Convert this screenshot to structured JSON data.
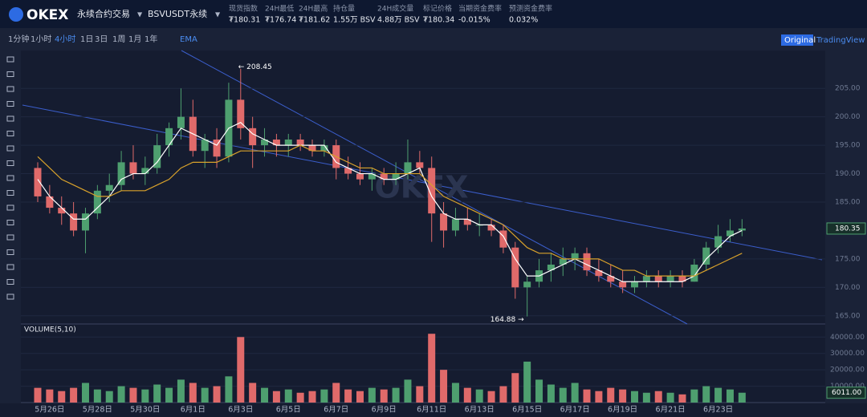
{
  "header": {
    "logo": "OKEX",
    "market": "永续合约交易",
    "contract": "BSVUSDT永续",
    "stats": [
      {
        "label": "现货指数",
        "value": "₮180.31"
      },
      {
        "label": "24H最低",
        "value": "₮176.74"
      },
      {
        "label": "24H最高",
        "value": "₮181.62"
      },
      {
        "label": "持仓量",
        "value": "1.55万 BSV"
      },
      {
        "label": "24H成交量",
        "value": "4.88万 BSV"
      },
      {
        "label": "标记价格",
        "value": "₮180.34"
      },
      {
        "label": "当期资金费率",
        "value": "-0.015%"
      },
      {
        "label": "预测资金费率",
        "value": "0.032%"
      }
    ]
  },
  "toolbar": {
    "intervals": [
      "1分钟",
      "1小时",
      "4小时",
      "1日",
      "3日",
      "1周",
      "1月",
      "1年"
    ],
    "active_interval": "4小时",
    "indicator": "EMA",
    "views": [
      "Original",
      "TradingView"
    ]
  },
  "chart_data": {
    "type": "candlestick",
    "watermark": "OKEX",
    "categories": [
      null,
      "5月26日",
      null,
      null,
      null,
      "5月28日",
      null,
      null,
      null,
      "5月30日",
      null,
      null,
      null,
      "6月1日",
      null,
      null,
      null,
      "6月3日",
      null,
      null,
      null,
      "6月5日",
      null,
      null,
      null,
      "6月7日",
      null,
      null,
      null,
      "6月9日",
      null,
      null,
      null,
      "6月11日",
      null,
      null,
      null,
      "6月13日",
      null,
      null,
      null,
      "6月15日",
      null,
      null,
      null,
      "6月17日",
      null,
      null,
      null,
      "6月19日",
      null,
      null,
      null,
      "6月21日",
      null,
      null,
      null,
      "6月23日",
      null,
      null
    ],
    "open": [
      191,
      186,
      184,
      183,
      180,
      183,
      187,
      188,
      192,
      190,
      191,
      195,
      198,
      200,
      194,
      196,
      193,
      203,
      198,
      195,
      196,
      195,
      196,
      195,
      194,
      195,
      191,
      190,
      189,
      190,
      189,
      190,
      192,
      191,
      183,
      180,
      182,
      181,
      181,
      180,
      177,
      170,
      171,
      173,
      174,
      175,
      176,
      173,
      172,
      171,
      170,
      171,
      172,
      171,
      172,
      171,
      174,
      177,
      179,
      180
    ],
    "high": [
      192,
      188,
      186,
      185,
      184,
      188,
      190,
      194,
      195,
      193,
      197,
      199,
      205,
      203,
      197,
      198,
      206,
      208.45,
      200,
      198,
      197,
      197,
      197,
      196,
      196,
      196,
      193,
      192,
      191,
      191,
      192,
      196,
      194,
      193,
      185,
      184,
      184,
      183,
      182,
      181,
      178,
      172,
      175,
      176,
      177,
      177,
      177,
      175,
      174,
      173,
      172,
      173,
      173,
      173,
      173,
      175,
      178,
      181,
      182,
      182
    ],
    "low": [
      185,
      183,
      181,
      179,
      176,
      182,
      185,
      187,
      189,
      188,
      190,
      193,
      196,
      193,
      191,
      191,
      192,
      196,
      191,
      193,
      193,
      193,
      194,
      193,
      193,
      189,
      189,
      188,
      187,
      188,
      188,
      189,
      190,
      178,
      177,
      179,
      180,
      179,
      179,
      176,
      168,
      164.88,
      170,
      171,
      172,
      173,
      172,
      171,
      170,
      169,
      169,
      170,
      170,
      170,
      170,
      171,
      173,
      176,
      178,
      179
    ],
    "close": [
      186,
      184,
      183,
      180,
      183,
      187,
      188,
      192,
      190,
      191,
      195,
      198,
      200,
      194,
      196,
      193,
      203,
      198,
      195,
      196,
      195,
      196,
      195,
      194,
      195,
      191,
      190,
      189,
      190,
      189,
      190,
      192,
      191,
      183,
      180,
      182,
      181,
      181,
      180,
      177,
      170,
      171,
      173,
      174,
      175,
      176,
      173,
      172,
      171,
      170,
      171,
      172,
      171,
      172,
      171,
      174,
      177,
      179,
      180,
      180.35
    ],
    "up_color": "#4e9f6f",
    "down_color": "#e06a6a",
    "lines": [
      {
        "color": "#ffffff",
        "values": [
          189,
          186,
          184,
          182,
          182,
          184,
          186,
          189,
          190,
          190,
          192,
          195,
          198,
          197,
          196,
          195,
          198,
          199,
          197,
          196,
          195,
          195,
          195,
          195,
          195,
          192,
          191,
          190,
          190,
          189,
          189,
          190,
          191,
          186,
          183,
          182,
          182,
          181,
          181,
          179,
          175,
          172,
          172,
          173,
          174,
          175,
          174,
          173,
          172,
          171,
          171,
          171,
          171,
          171,
          171,
          172,
          175,
          177,
          179,
          180
        ]
      },
      {
        "color": "#d9a22b",
        "values": [
          193,
          191,
          189,
          188,
          187,
          186,
          186,
          187,
          187,
          187,
          188,
          189,
          191,
          192,
          192,
          192,
          193,
          194,
          194,
          194,
          194,
          194,
          195,
          194,
          194,
          193,
          192,
          191,
          191,
          190,
          190,
          190,
          190,
          188,
          186,
          185,
          184,
          183,
          182,
          181,
          179,
          177,
          176,
          176,
          175,
          175,
          175,
          175,
          174,
          173,
          173,
          172,
          172,
          172,
          172,
          172,
          173,
          174,
          175,
          176
        ]
      }
    ],
    "high_label": "← 208.45",
    "low_label": "164.88 →",
    "ylim": [
      163.7,
      211.8
    ],
    "yticks": [
      {
        "value": 165,
        "label": "165.00"
      },
      {
        "value": 170,
        "label": "170.00"
      },
      {
        "value": 175,
        "label": "175.00"
      },
      {
        "value": 185,
        "label": "185.00"
      },
      {
        "value": 190,
        "label": "190.00"
      },
      {
        "value": 195,
        "label": "195.00"
      },
      {
        "value": 200,
        "label": "200.00"
      },
      {
        "value": 205,
        "label": "205.00"
      }
    ],
    "volume": {
      "title": "VOLUME(5,10)",
      "values": [
        9000,
        8000,
        7000,
        9000,
        12000,
        8000,
        7000,
        10000,
        9000,
        8000,
        11000,
        9000,
        14000,
        12000,
        9000,
        10000,
        16000,
        40000,
        12000,
        9000,
        7000,
        8000,
        6000,
        7000,
        8000,
        12000,
        8000,
        7000,
        9000,
        8000,
        9000,
        14000,
        10000,
        42000,
        20000,
        12000,
        9000,
        8000,
        7000,
        10000,
        18000,
        25000,
        14000,
        11000,
        9000,
        12000,
        8000,
        7000,
        9000,
        8000,
        7000,
        6000,
        7000,
        6000,
        5000,
        8000,
        10000,
        9000,
        8000,
        6011
      ],
      "ylim": [
        0,
        47000
      ],
      "yticks": [
        {
          "value": 10000,
          "label": "10000.00"
        },
        {
          "value": 20000,
          "label": "20000.00"
        },
        {
          "value": 30000,
          "label": "30000.00"
        },
        {
          "value": 40000,
          "label": "40000.00"
        }
      ],
      "tag_label": "6011.00"
    }
  }
}
